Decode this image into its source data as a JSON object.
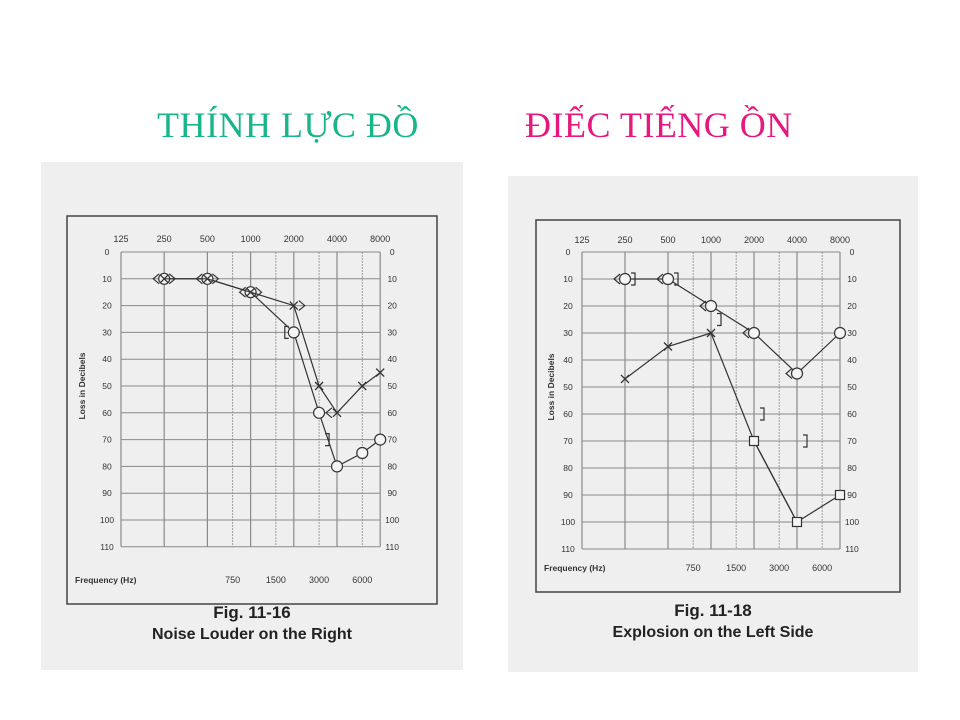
{
  "slide": {
    "title_left": "THÍNH LỰC ĐỒ",
    "title_right": "ĐIẾC TIẾNG ỒN",
    "colors": {
      "title_left": "#19b58a",
      "title_right": "#e6187f",
      "ink": "#333333",
      "grid": "#8a8a8a"
    }
  },
  "chart_data": [
    {
      "type": "line",
      "subtype": "audiogram",
      "figure_label": "Fig. 11-16",
      "caption": "Noise Louder on the Right",
      "xlabel": "Frequency (Hz)",
      "ylabel": "Loss in Decibels",
      "x_top_ticks": [
        "125",
        "250",
        "500",
        "1000",
        "2000",
        "4000",
        "8000"
      ],
      "x_bottom_ticks": [
        "750",
        "1500",
        "3000",
        "6000"
      ],
      "y_ticks": [
        "0",
        "10",
        "20",
        "30",
        "40",
        "50",
        "60",
        "70",
        "80",
        "90",
        "100",
        "110"
      ],
      "ylim": [
        0,
        110
      ],
      "y_inverted": true,
      "grid": true,
      "series": [
        {
          "symbol": "O",
          "points": [
            [
              250,
              10
            ],
            [
              500,
              10
            ],
            [
              1000,
              15
            ],
            [
              2000,
              30
            ],
            [
              3000,
              60
            ],
            [
              4000,
              80
            ],
            [
              6000,
              75
            ],
            [
              8000,
              70
            ]
          ]
        },
        {
          "symbol": "X",
          "points": [
            [
              250,
              10
            ],
            [
              500,
              10
            ],
            [
              1000,
              15
            ],
            [
              2000,
              20
            ],
            [
              3000,
              50
            ],
            [
              4000,
              60
            ],
            [
              6000,
              50
            ],
            [
              8000,
              45
            ]
          ]
        },
        {
          "symbol": "<",
          "points": [
            [
              250,
              10
            ],
            [
              500,
              10
            ],
            [
              1000,
              15
            ]
          ]
        },
        {
          "symbol": ">",
          "points": [
            [
              250,
              10
            ],
            [
              500,
              10
            ],
            [
              1000,
              15
            ],
            [
              2000,
              20
            ]
          ]
        },
        {
          "symbol": "[",
          "points": [
            [
              2000,
              30
            ]
          ]
        },
        {
          "symbol": "<",
          "points": [
            [
              4000,
              60
            ]
          ]
        },
        {
          "symbol": "]",
          "points": [
            [
              3000,
              70
            ]
          ]
        }
      ]
    },
    {
      "type": "line",
      "subtype": "audiogram",
      "figure_label": "Fig. 11-18",
      "caption": "Explosion on the Left Side",
      "xlabel": "Frequency (Hz)",
      "ylabel": "Loss in Decibels",
      "x_top_ticks": [
        "125",
        "250",
        "500",
        "1000",
        "2000",
        "4000",
        "8000"
      ],
      "x_bottom_ticks": [
        "750",
        "1500",
        "3000",
        "6000"
      ],
      "y_ticks": [
        "0",
        "10",
        "20",
        "30",
        "40",
        "50",
        "60",
        "70",
        "80",
        "90",
        "100",
        "110"
      ],
      "ylim": [
        0,
        110
      ],
      "y_inverted": true,
      "grid": true,
      "series": [
        {
          "symbol": "O",
          "points": [
            [
              250,
              10
            ],
            [
              500,
              10
            ],
            [
              1000,
              20
            ],
            [
              2000,
              30
            ],
            [
              4000,
              45
            ],
            [
              8000,
              30
            ]
          ]
        },
        {
          "symbol": "X",
          "points": [
            [
              250,
              47
            ],
            [
              500,
              35
            ],
            [
              1000,
              30
            ],
            [
              2000,
              70
            ],
            [
              4000,
              100
            ]
          ]
        },
        {
          "symbol": "square",
          "points": [
            [
              2000,
              70
            ],
            [
              4000,
              100
            ],
            [
              8000,
              90
            ]
          ]
        },
        {
          "symbol": "<",
          "points": [
            [
              250,
              10
            ],
            [
              500,
              10
            ],
            [
              1000,
              20
            ],
            [
              2000,
              30
            ],
            [
              4000,
              45
            ]
          ]
        },
        {
          "symbol": "]",
          "points": [
            [
              250,
              10
            ],
            [
              500,
              10
            ],
            [
              1000,
              25
            ],
            [
              2000,
              60
            ],
            [
              4000,
              70
            ]
          ]
        }
      ]
    }
  ]
}
